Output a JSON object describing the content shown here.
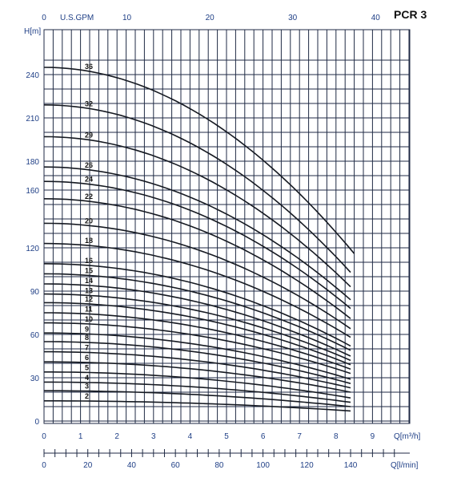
{
  "chart_data": {
    "type": "line",
    "title": "PCR 3",
    "ylabel": "H[m]",
    "xlabel": "Q[m³/h]",
    "top_axis_label": "U.S.GPM",
    "bottom_axis_label": "Q[l/min]",
    "xlim": [
      0,
      10
    ],
    "ylim": [
      0,
      250
    ],
    "grid": true,
    "y_ticks": [
      0,
      30,
      60,
      90,
      120,
      160,
      180,
      210,
      240
    ],
    "y_tick_labels": [
      "0",
      "30",
      "60",
      "90",
      "120",
      "160",
      "180",
      "210",
      "240"
    ],
    "x_ticks": [
      0,
      1,
      2,
      3,
      4,
      5,
      6,
      7,
      8,
      9
    ],
    "x_tick_labels": [
      "0",
      "1",
      "2",
      "3",
      "4",
      "5",
      "6",
      "7",
      "8",
      "9"
    ],
    "top_ticks": [
      0,
      10,
      20,
      30,
      40
    ],
    "top_tick_labels": [
      "0",
      "10",
      "20",
      "30",
      "40"
    ],
    "bottom_ticks": [
      0,
      20,
      40,
      60,
      80,
      100,
      120,
      140
    ],
    "bottom_tick_labels": [
      "0",
      "20",
      "40",
      "60",
      "80",
      "100",
      "120",
      "140"
    ],
    "series": [
      {
        "name": "36",
        "shutoff": 245,
        "end_q": 8.5,
        "end_h": 116
      },
      {
        "name": "32",
        "shutoff": 219,
        "end_q": 8.4,
        "end_h": 103
      },
      {
        "name": "29",
        "shutoff": 197,
        "end_q": 8.4,
        "end_h": 93
      },
      {
        "name": "26",
        "shutoff": 176,
        "end_q": 8.4,
        "end_h": 84
      },
      {
        "name": "24",
        "shutoff": 166,
        "end_q": 8.4,
        "end_h": 78
      },
      {
        "name": "22",
        "shutoff": 154,
        "end_q": 8.4,
        "end_h": 71
      },
      {
        "name": "20",
        "shutoff": 137,
        "end_q": 8.4,
        "end_h": 64
      },
      {
        "name": "18",
        "shutoff": 123,
        "end_q": 8.4,
        "end_h": 58
      },
      {
        "name": "16",
        "shutoff": 109,
        "end_q": 8.4,
        "end_h": 52
      },
      {
        "name": "15",
        "shutoff": 102,
        "end_q": 8.4,
        "end_h": 49
      },
      {
        "name": "14",
        "shutoff": 95,
        "end_q": 8.4,
        "end_h": 45
      },
      {
        "name": "13",
        "shutoff": 88,
        "end_q": 8.4,
        "end_h": 42
      },
      {
        "name": "12",
        "shutoff": 82,
        "end_q": 8.4,
        "end_h": 39
      },
      {
        "name": "11",
        "shutoff": 75,
        "end_q": 8.4,
        "end_h": 36
      },
      {
        "name": "10",
        "shutoff": 68,
        "end_q": 8.4,
        "end_h": 33
      },
      {
        "name": "9",
        "shutoff": 61,
        "end_q": 8.4,
        "end_h": 29
      },
      {
        "name": "8",
        "shutoff": 55,
        "end_q": 8.4,
        "end_h": 26
      },
      {
        "name": "7",
        "shutoff": 48,
        "end_q": 8.4,
        "end_h": 23
      },
      {
        "name": "6",
        "shutoff": 41,
        "end_q": 8.4,
        "end_h": 20
      },
      {
        "name": "5",
        "shutoff": 34,
        "end_q": 8.4,
        "end_h": 16
      },
      {
        "name": "4",
        "shutoff": 27,
        "end_q": 8.4,
        "end_h": 13
      },
      {
        "name": "3",
        "shutoff": 21,
        "end_q": 8.4,
        "end_h": 10
      },
      {
        "name": "2",
        "shutoff": 14,
        "end_q": 8.4,
        "end_h": 7
      }
    ]
  }
}
